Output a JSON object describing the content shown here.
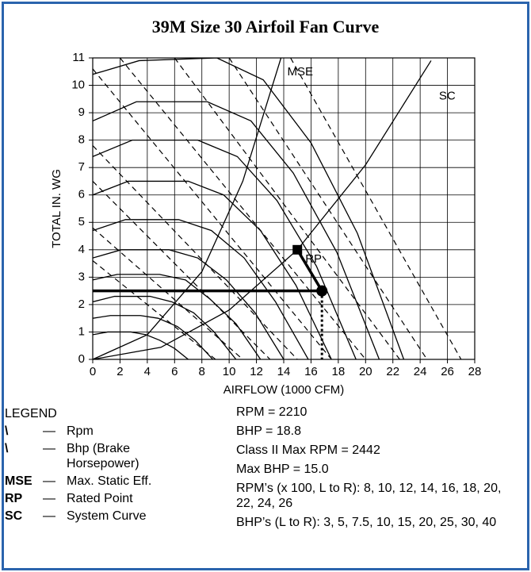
{
  "chart_data": {
    "type": "line",
    "title": "39M Size 30 Airfoil Fan Curve",
    "xlabel": "AIRFLOW (1000 CFM)",
    "ylabel": "TOTAL IN. WG",
    "xlim": [
      0,
      28
    ],
    "xticks": [
      0,
      2,
      4,
      6,
      8,
      10,
      12,
      14,
      16,
      18,
      20,
      22,
      24,
      26,
      28
    ],
    "ylim": [
      0,
      11
    ],
    "yticks": [
      0,
      1,
      2,
      3,
      4,
      5,
      6,
      7,
      8,
      9,
      10,
      11
    ],
    "grid": true,
    "color": "#000000",
    "series": [
      {
        "style": "solid",
        "x": [
          0,
          1.1,
          2.8,
          3.9,
          4.9,
          6,
          7
        ],
        "values": [
          0.9,
          1,
          1,
          0.9,
          0.7,
          0.4,
          0
        ]
      },
      {
        "style": "solid",
        "x": [
          0,
          1.3,
          3.5,
          4.8,
          6.2,
          7.5,
          8.8
        ],
        "values": [
          1.5,
          1.6,
          1.6,
          1.5,
          1.2,
          0.7,
          0
        ]
      },
      {
        "style": "solid",
        "x": [
          0,
          1.6,
          4.2,
          5.8,
          7.4,
          8.9,
          10.5
        ],
        "values": [
          2.1,
          2.3,
          2.3,
          2.1,
          1.7,
          1,
          0
        ]
      },
      {
        "style": "solid",
        "x": [
          0,
          1.8,
          4.9,
          6.8,
          8.6,
          10.5,
          12.3
        ],
        "values": [
          2.9,
          3.1,
          3.1,
          2.9,
          2.2,
          1.3,
          0
        ]
      },
      {
        "style": "solid",
        "x": [
          0,
          2.1,
          5.6,
          7.7,
          9.8,
          11.9,
          14
        ],
        "values": [
          3.7,
          4,
          4,
          3.7,
          2.9,
          1.7,
          0
        ]
      },
      {
        "style": "solid",
        "x": [
          0,
          2.4,
          6.3,
          8.7,
          11.1,
          13.4,
          15.8
        ],
        "values": [
          4.7,
          5.1,
          5.1,
          4.7,
          3.7,
          2.1,
          0
        ]
      },
      {
        "style": "solid",
        "x": [
          0,
          2.6,
          7,
          9.6,
          12.3,
          14.9,
          17.5
        ],
        "values": [
          6,
          6.5,
          6.5,
          6,
          4.7,
          2.7,
          0
        ]
      },
      {
        "style": "solid",
        "x": [
          0,
          2.9,
          7.7,
          10.6,
          13.5,
          16.4,
          19.3
        ],
        "values": [
          7.4,
          8,
          8,
          7.4,
          5.8,
          3.4,
          0
        ]
      },
      {
        "style": "solid",
        "x": [
          0,
          3.2,
          8.4,
          11.6,
          14.7,
          17.9,
          21
        ],
        "values": [
          8.7,
          9.4,
          9.4,
          8.7,
          6.8,
          3.9,
          0
        ]
      },
      {
        "style": "solid",
        "x": [
          0,
          3.4,
          9.1,
          12.5,
          16,
          19.4,
          22.8
        ],
        "values": [
          10.4,
          10.9,
          11,
          10.2,
          7.9,
          4.6,
          0
        ]
      },
      {
        "style": "dashed",
        "x": [
          0,
          9
        ],
        "values": [
          3.6,
          0
        ]
      },
      {
        "style": "dashed",
        "x": [
          0,
          11
        ],
        "values": [
          4.8,
          0
        ]
      },
      {
        "style": "dashed",
        "x": [
          0,
          13
        ],
        "values": [
          6.5,
          0
        ]
      },
      {
        "style": "dashed",
        "x": [
          0,
          15
        ],
        "values": [
          7.8,
          0
        ]
      },
      {
        "style": "dashed",
        "x": [
          0,
          17.5
        ],
        "values": [
          10.6,
          0
        ]
      },
      {
        "style": "dashed",
        "x": [
          2,
          20
        ],
        "values": [
          11,
          0
        ]
      },
      {
        "style": "dashed",
        "x": [
          6,
          22.5
        ],
        "values": [
          11,
          0
        ]
      },
      {
        "style": "dashed",
        "x": [
          10,
          24.5
        ],
        "values": [
          11,
          0
        ]
      },
      {
        "style": "dashed",
        "x": [
          14.5,
          27
        ],
        "values": [
          11,
          0
        ]
      },
      {
        "name": "MSE",
        "style": "solid",
        "x": [
          0,
          4,
          8,
          11,
          13.8
        ],
        "values": [
          0,
          0.9,
          3.2,
          6.5,
          11
        ]
      },
      {
        "name": "SC",
        "style": "solid",
        "x": [
          0,
          5,
          10,
          15,
          20,
          24.8
        ],
        "values": [
          0,
          0.44,
          1.8,
          4,
          7.1,
          10.9
        ]
      },
      {
        "style": "thick",
        "x": [
          0,
          16.8
        ],
        "values": [
          2.5,
          2.5
        ]
      },
      {
        "style": "thick",
        "x": [
          15,
          16.8
        ],
        "values": [
          4,
          2.5
        ]
      },
      {
        "style": "dotted",
        "x": [
          16.8,
          16.8
        ],
        "values": [
          2.5,
          0
        ]
      },
      {
        "name": "RP",
        "style": "square",
        "x": [
          15
        ],
        "values": [
          4
        ]
      },
      {
        "style": "dot",
        "x": [
          16.8
        ],
        "values": [
          2.5
        ]
      }
    ]
  },
  "legend": {
    "title": "LEGEND",
    "items": [
      {
        "symbol": "\\",
        "dash": "—",
        "text": "Rpm"
      },
      {
        "symbol": "\\",
        "dash": "—",
        "text": "Bhp (Brake Horsepower)"
      },
      {
        "symbol": "MSE",
        "dash": "—",
        "text": "Max. Static Eff."
      },
      {
        "symbol": "RP",
        "dash": "—",
        "text": "Rated Point"
      },
      {
        "symbol": "SC",
        "dash": "—",
        "text": "System Curve"
      }
    ]
  },
  "notes": [
    "RPM = 2210",
    "BHP = 18.8",
    "Class II Max RPM = 2442",
    "Max BHP = 15.0",
    "RPM’s (x 100, L to R): 8, 10, 12, 14, 16, 18, 20, 22, 24, 26",
    "BHP’s (L to R): 3, 5, 7.5, 10, 15, 20, 25, 30, 40"
  ]
}
